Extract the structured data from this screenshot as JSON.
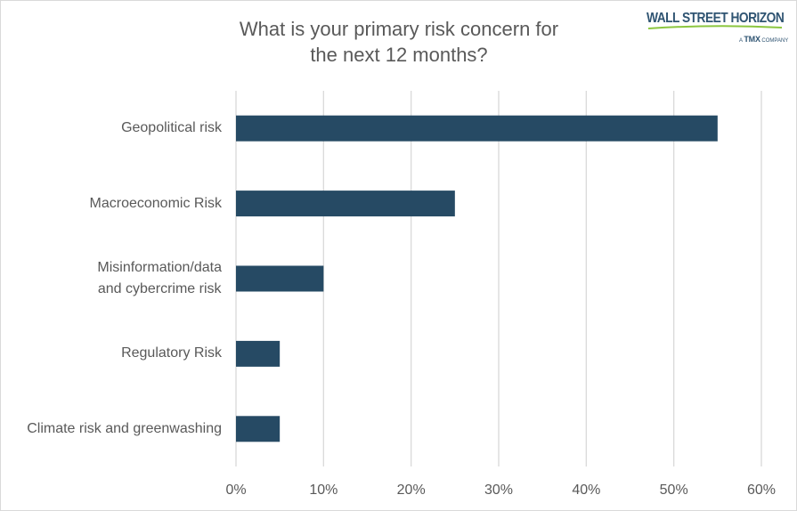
{
  "chart_data": {
    "type": "bar",
    "orientation": "horizontal",
    "title": "What is your primary risk concern for the next 12 months?",
    "title_lines": [
      "What is your primary risk concern for",
      "the next 12 months?"
    ],
    "categories": [
      "Geopolitical risk",
      "Macroeconomic Risk",
      "Misinformation/data and cybercrime risk",
      "Regulatory Risk",
      "Climate risk and greenwashing"
    ],
    "category_lines": [
      [
        "Geopolitical risk"
      ],
      [
        "Macroeconomic Risk"
      ],
      [
        "Misinformation/data",
        "and cybercrime risk"
      ],
      [
        "Regulatory Risk"
      ],
      [
        "Climate risk and greenwashing"
      ]
    ],
    "values": [
      55,
      25,
      10,
      5,
      5
    ],
    "xlim": [
      0,
      60
    ],
    "x_ticks": [
      "0%",
      "10%",
      "20%",
      "30%",
      "40%",
      "50%",
      "60%"
    ],
    "xlabel": "",
    "ylabel": "",
    "grid": "vertical",
    "legend": "none",
    "bar_color": "#264a64",
    "grid_color": "#d9d9d9"
  },
  "logo": {
    "name": "WALL STREET HORIZON",
    "sub_prefix": "A",
    "sub_brand": "TMX",
    "sub_suffix": "COMPANY"
  }
}
